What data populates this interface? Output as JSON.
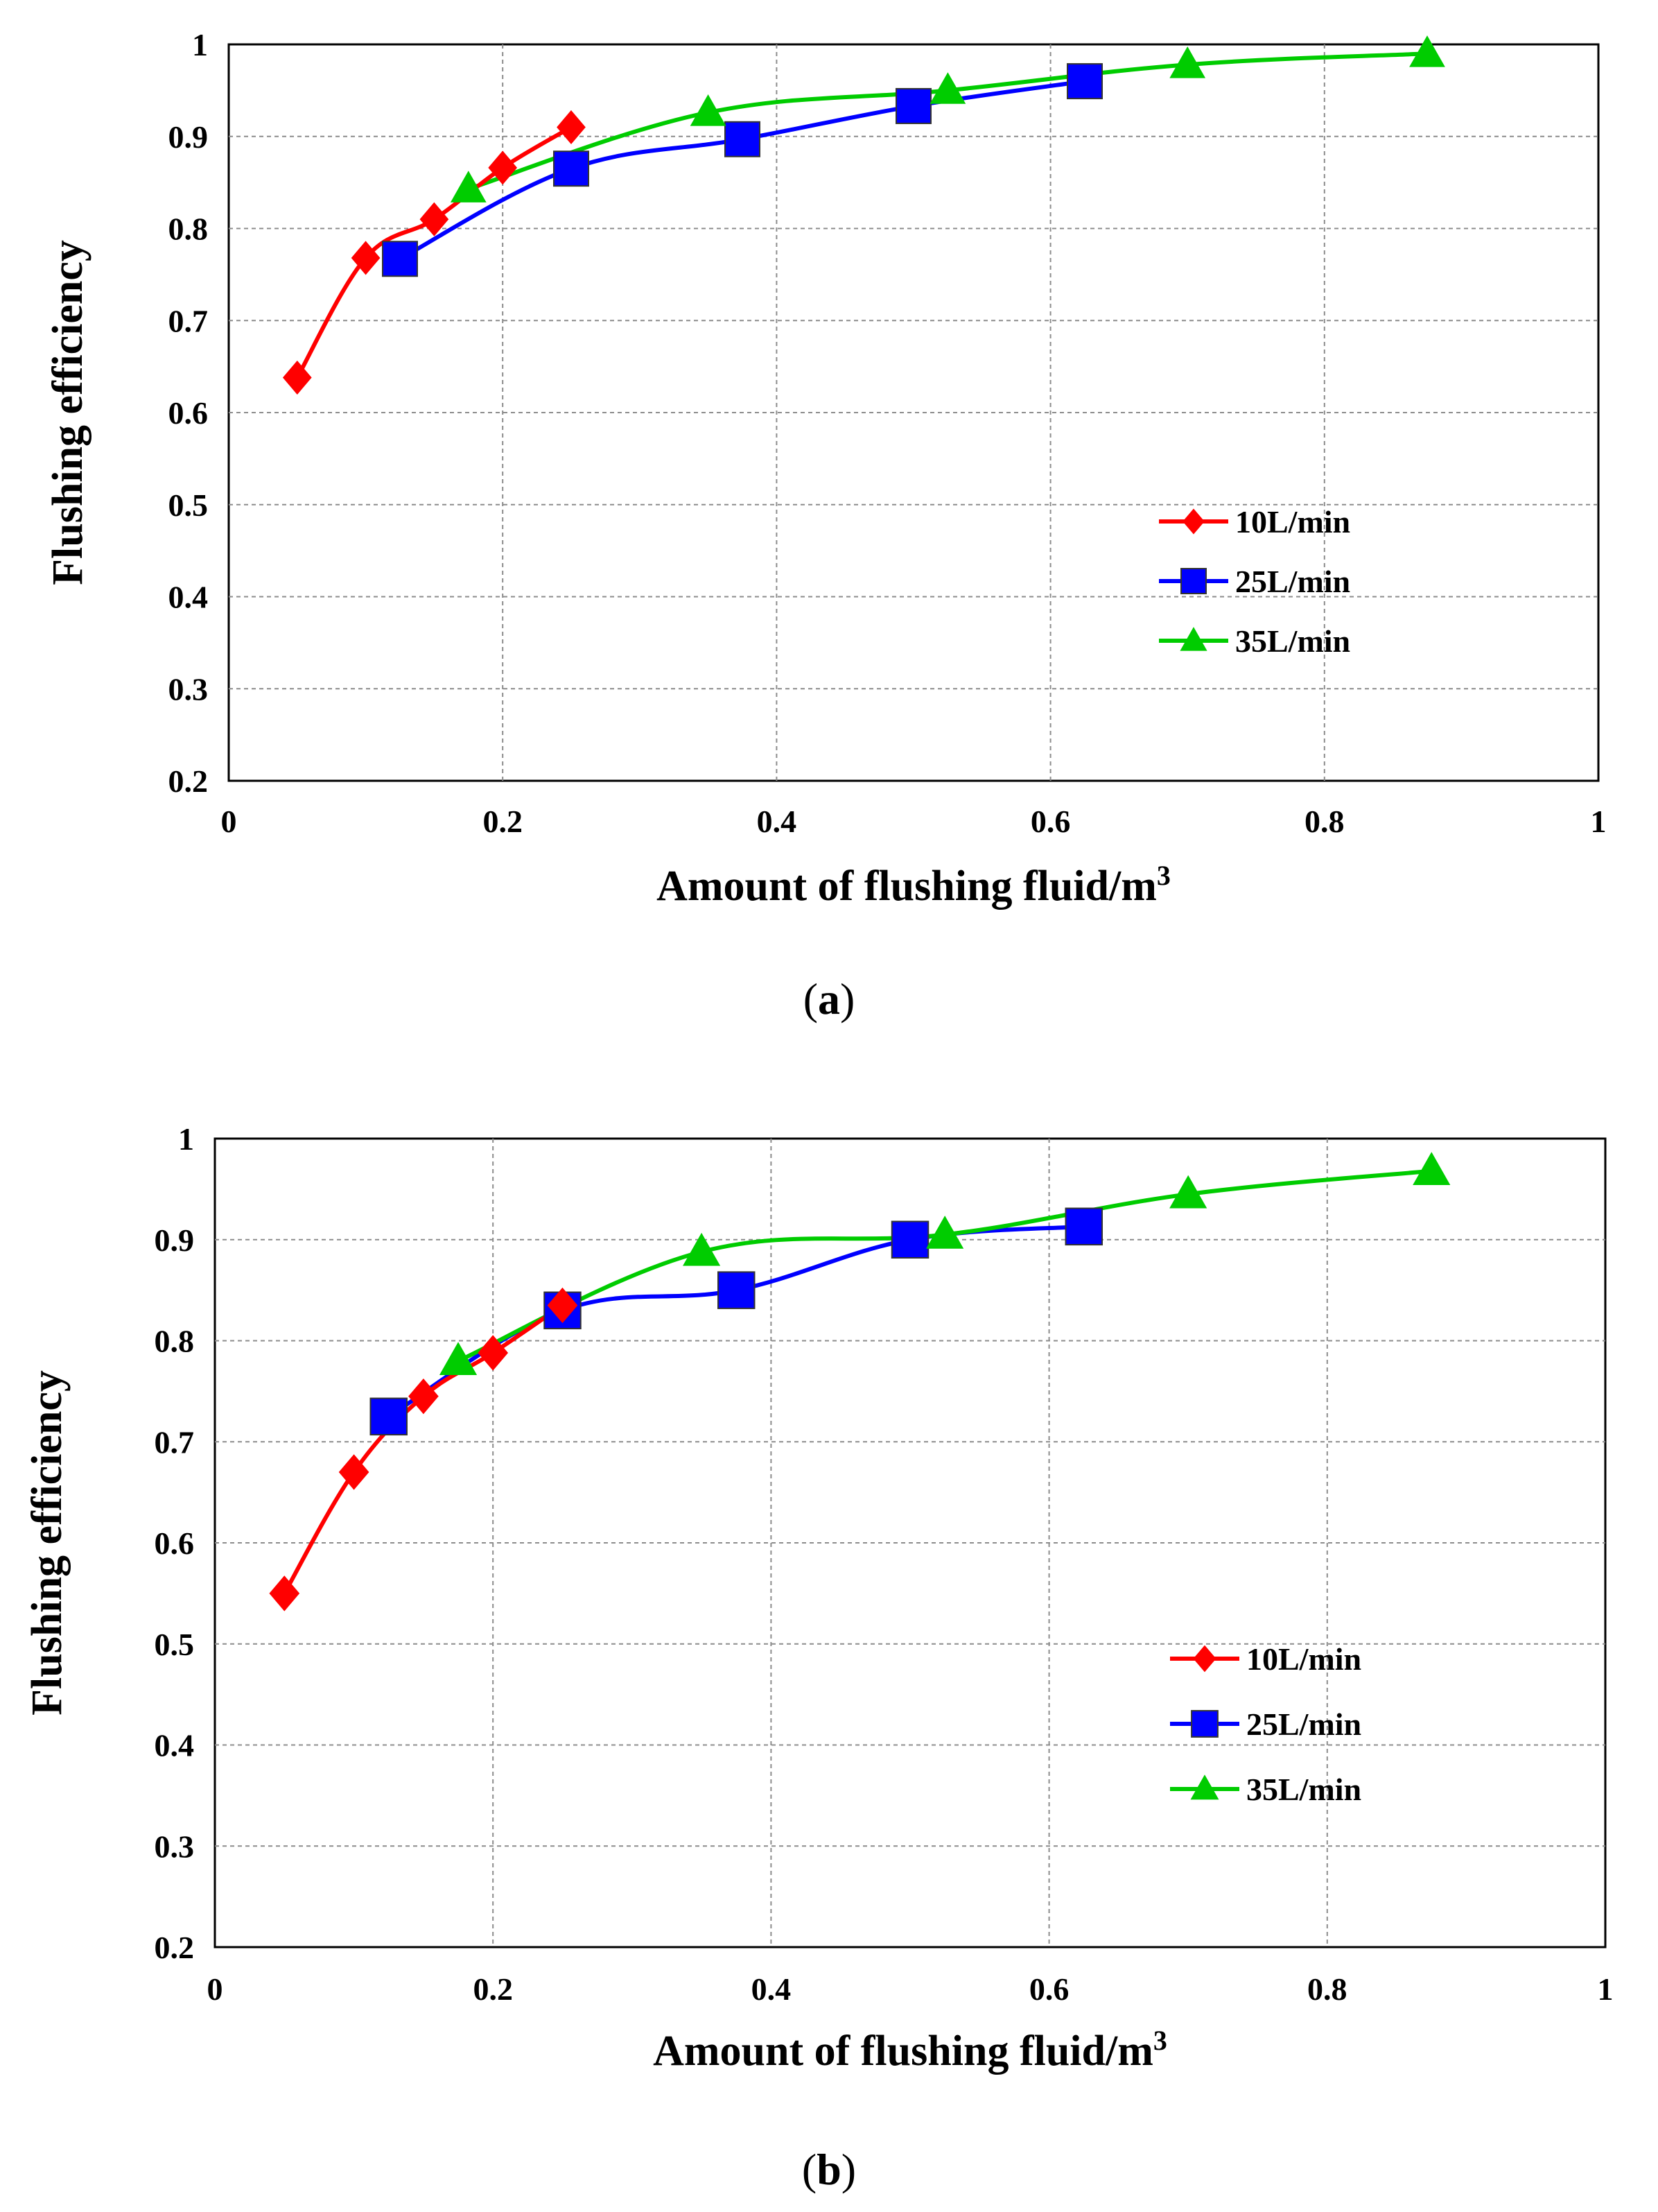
{
  "colors": {
    "red": "#ff0000",
    "blue": "#0000ff",
    "green": "#00cc00"
  },
  "chart_data": [
    {
      "type": "line",
      "caption_letter": "a",
      "xlabel": "Amount of flushing fluid/m",
      "xlabel_sup": "3",
      "ylabel": "Flushing efficiency",
      "xlim": [
        0,
        1
      ],
      "ylim": [
        0.2,
        1
      ],
      "xticks": [
        "0",
        "0.2",
        "0.4",
        "0.6",
        "0.8",
        "1"
      ],
      "yticks": [
        "0.2",
        "0.3",
        "0.4",
        "0.5",
        "0.6",
        "0.7",
        "0.8",
        "0.9",
        "1"
      ],
      "grid": true,
      "legend": "center-right",
      "series": [
        {
          "name": "10L/min",
          "color": "#ff0000",
          "marker": "diamond",
          "x": [
            0.05,
            0.1,
            0.15,
            0.2,
            0.25
          ],
          "y": [
            0.638,
            0.768,
            0.81,
            0.866,
            0.91
          ]
        },
        {
          "name": "25L/min",
          "color": "#0000ff",
          "marker": "square",
          "x": [
            0.125,
            0.25,
            0.375,
            0.5,
            0.625
          ],
          "y": [
            0.767,
            0.865,
            0.897,
            0.933,
            0.96
          ]
        },
        {
          "name": "35L/min",
          "color": "#00cc00",
          "marker": "triangle",
          "x": [
            0.175,
            0.35,
            0.525,
            0.7,
            0.875
          ],
          "y": [
            0.843,
            0.926,
            0.95,
            0.978,
            0.99
          ]
        }
      ]
    },
    {
      "type": "line",
      "caption_letter": "b",
      "xlabel": "Amount of flushing fluid/m",
      "xlabel_sup": "3",
      "ylabel": "Flushing efficiency",
      "xlim": [
        0,
        1
      ],
      "ylim": [
        0.2,
        1
      ],
      "xticks": [
        "0",
        "0.2",
        "0.4",
        "0.6",
        "0.8",
        "1"
      ],
      "yticks": [
        "0.2",
        "0.3",
        "0.4",
        "0.5",
        "0.6",
        "0.7",
        "0.8",
        "0.9",
        "1"
      ],
      "grid": true,
      "legend": "center-right",
      "series": [
        {
          "name": "10L/min",
          "color": "#ff0000",
          "marker": "diamond",
          "x": [
            0.05,
            0.1,
            0.15,
            0.2,
            0.25
          ],
          "y": [
            0.55,
            0.67,
            0.745,
            0.788,
            0.835
          ]
        },
        {
          "name": "25L/min",
          "color": "#0000ff",
          "marker": "square",
          "x": [
            0.125,
            0.25,
            0.375,
            0.5,
            0.625
          ],
          "y": [
            0.725,
            0.83,
            0.85,
            0.9,
            0.913
          ]
        },
        {
          "name": "35L/min",
          "color": "#00cc00",
          "marker": "triangle",
          "x": [
            0.175,
            0.35,
            0.525,
            0.7,
            0.875
          ],
          "y": [
            0.78,
            0.888,
            0.905,
            0.945,
            0.968
          ]
        }
      ]
    }
  ]
}
